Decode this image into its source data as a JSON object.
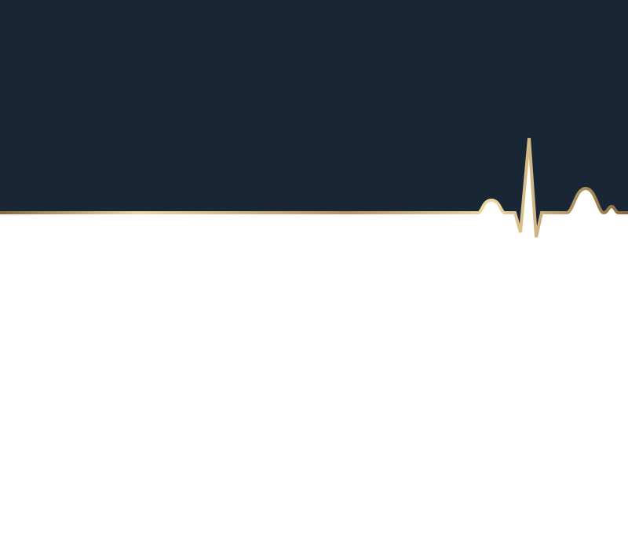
{
  "colors": {
    "banner_background": "#182635",
    "page_background": "#ffffff",
    "accent_gold_light": "#efd9a4",
    "accent_gold": "#c9a66b",
    "accent_gold_dark": "#8a6a3a"
  },
  "decorations": {
    "banner": "dark-navy-header",
    "heartbeat_line": "heartbeat-line-icon"
  }
}
